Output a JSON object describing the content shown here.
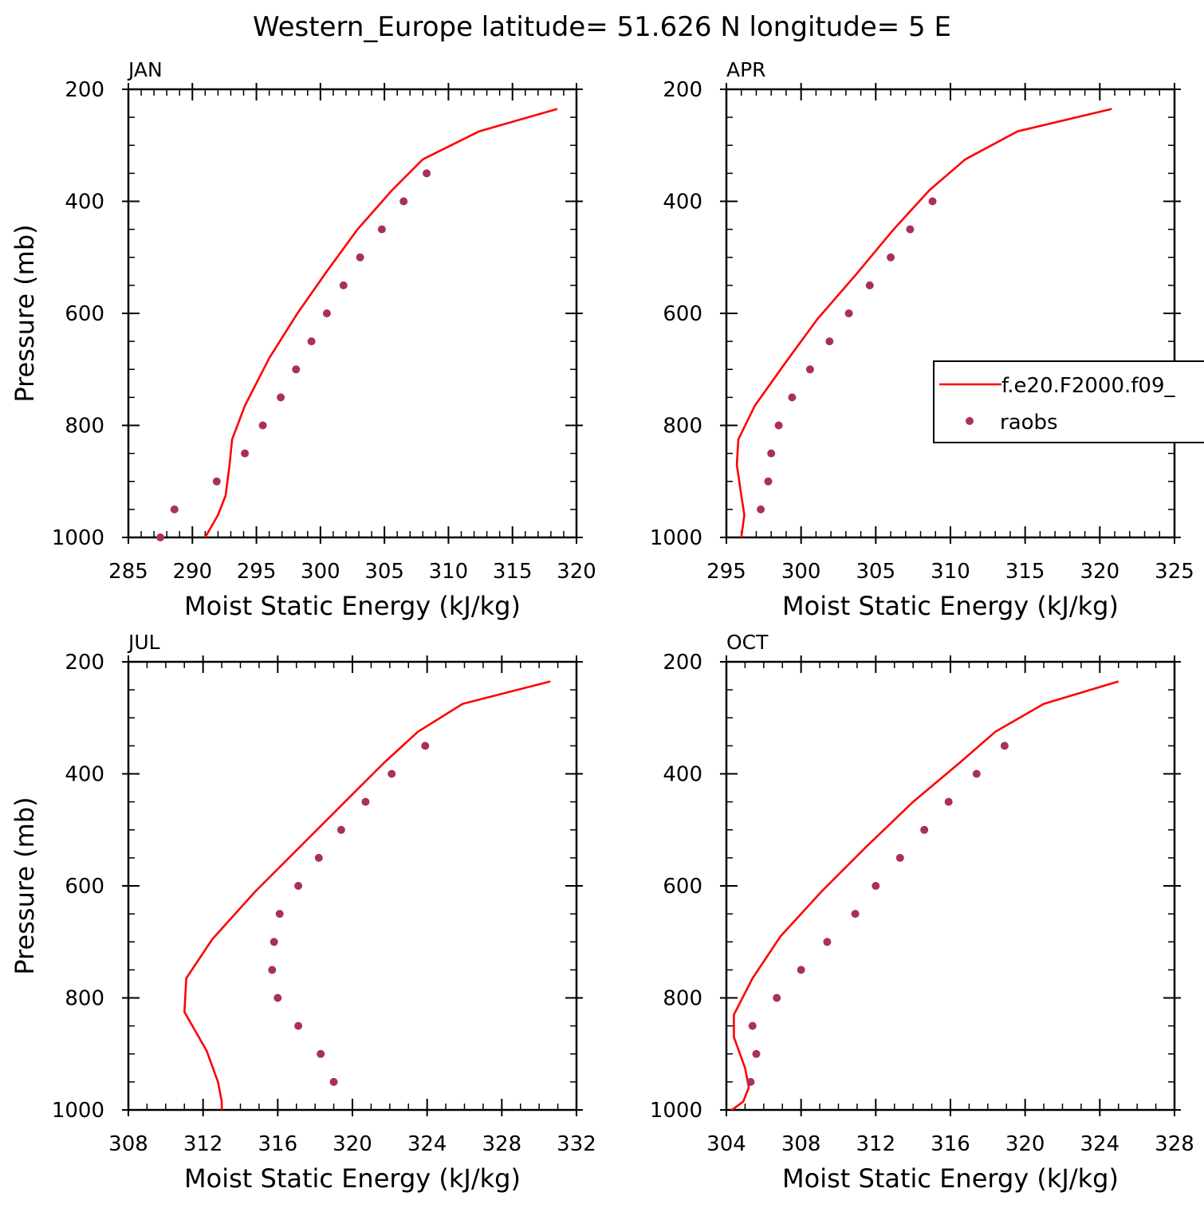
{
  "title": "Western_Europe  latitude= 51.626 N longitude= 5 E",
  "colors": {
    "model": "#ff0000",
    "obs": "#a83060",
    "axes": "#000000",
    "background": "#ffffff"
  },
  "legend": {
    "model_label": "f.e20.F2000.f09_",
    "obs_label": "raobs",
    "placement": "right side of APR panel (clipped at page edge)"
  },
  "chart_data": [
    {
      "type": "line",
      "panel": "JAN",
      "label": "JAN",
      "xlabel": "Moist Static Energy (kJ/kg)",
      "ylabel": "Pressure (mb)",
      "xlim": [
        285,
        320
      ],
      "ylim": [
        1000,
        200
      ],
      "xticks": [
        285,
        290,
        295,
        300,
        305,
        310,
        315,
        320
      ],
      "xtick_labels": [
        "285",
        "290",
        "295",
        "300",
        "305",
        "310",
        "315",
        "320"
      ],
      "yticks": [
        200,
        400,
        600,
        800,
        1000
      ],
      "ytick_labels": [
        "200",
        "400",
        "600",
        "800",
        "1000"
      ],
      "x_minor_step": 1,
      "y_minor_step": 50,
      "show_ylabel": true,
      "grid": false,
      "series": [
        {
          "name": "f.e20.F2000.f09_",
          "kind": "line",
          "x": [
            318.5,
            312.4,
            308.0,
            305.6,
            302.9,
            300.5,
            298.2,
            296.0,
            294.1,
            293.1,
            292.9,
            292.6,
            292.0,
            291.0
          ],
          "y": [
            235,
            275,
            325,
            380,
            450,
            525,
            600,
            680,
            765,
            825,
            870,
            925,
            960,
            1000
          ]
        },
        {
          "name": "raobs",
          "kind": "points",
          "x": [
            308.3,
            306.5,
            304.8,
            303.1,
            301.8,
            300.5,
            299.3,
            298.1,
            296.9,
            295.5,
            294.1,
            291.9,
            288.6,
            287.5
          ],
          "y": [
            350,
            400,
            450,
            500,
            550,
            600,
            650,
            700,
            750,
            800,
            850,
            900,
            950,
            1000
          ]
        }
      ]
    },
    {
      "type": "line",
      "panel": "APR",
      "label": "APR",
      "xlabel": "Moist Static Energy (kJ/kg)",
      "ylabel": "",
      "xlim": [
        295,
        325
      ],
      "ylim": [
        1000,
        200
      ],
      "xticks": [
        295,
        300,
        305,
        310,
        315,
        320,
        325
      ],
      "xtick_labels": [
        "295",
        "300",
        "305",
        "310",
        "315",
        "320",
        "325"
      ],
      "yticks": [
        200,
        400,
        600,
        800,
        1000
      ],
      "ytick_labels": [
        "200",
        "400",
        "600",
        "800",
        "1000"
      ],
      "x_minor_step": 1,
      "y_minor_step": 50,
      "show_ylabel": false,
      "grid": false,
      "series": [
        {
          "name": "f.e20.F2000.f09_",
          "kind": "line",
          "x": [
            320.8,
            314.5,
            311.0,
            308.6,
            306.2,
            303.7,
            301.1,
            298.9,
            296.9,
            295.8,
            295.7,
            296.0,
            296.2,
            296.0
          ],
          "y": [
            235,
            275,
            325,
            380,
            450,
            530,
            610,
            690,
            765,
            825,
            870,
            925,
            960,
            1000
          ]
        },
        {
          "name": "raobs",
          "kind": "points",
          "x": [
            308.8,
            307.3,
            306.0,
            304.6,
            303.2,
            301.9,
            300.6,
            299.4,
            298.5,
            298.0,
            297.8,
            297.3
          ],
          "y": [
            400,
            450,
            500,
            550,
            600,
            650,
            700,
            750,
            800,
            850,
            900,
            950
          ]
        }
      ]
    },
    {
      "type": "line",
      "panel": "JUL",
      "label": "JUL",
      "xlabel": "Moist Static Energy (kJ/kg)",
      "ylabel": "Pressure (mb)",
      "xlim": [
        308,
        332
      ],
      "ylim": [
        1000,
        200
      ],
      "xticks": [
        308,
        312,
        316,
        320,
        324,
        328,
        332
      ],
      "xtick_labels": [
        "308",
        "312",
        "316",
        "320",
        "324",
        "328",
        "332"
      ],
      "yticks": [
        200,
        400,
        600,
        800,
        1000
      ],
      "ytick_labels": [
        "200",
        "400",
        "600",
        "800",
        "1000"
      ],
      "x_minor_step": 1,
      "y_minor_step": 50,
      "show_ylabel": true,
      "grid": false,
      "series": [
        {
          "name": "f.e20.F2000.f09_",
          "kind": "line",
          "x": [
            330.6,
            325.9,
            323.5,
            321.7,
            319.6,
            317.2,
            314.8,
            312.5,
            311.1,
            311.0,
            312.2,
            312.8,
            313.0,
            313.0
          ],
          "y": [
            235,
            275,
            325,
            380,
            450,
            530,
            610,
            695,
            765,
            825,
            895,
            950,
            985,
            1000
          ]
        },
        {
          "name": "raobs",
          "kind": "points",
          "x": [
            323.9,
            322.1,
            320.7,
            319.4,
            318.2,
            317.1,
            316.1,
            315.8,
            315.7,
            316.0,
            317.1,
            318.3,
            319.0
          ],
          "y": [
            350,
            400,
            450,
            500,
            550,
            600,
            650,
            700,
            750,
            800,
            850,
            900,
            950
          ]
        }
      ]
    },
    {
      "type": "line",
      "panel": "OCT",
      "label": "OCT",
      "xlabel": "Moist Static Energy (kJ/kg)",
      "ylabel": "",
      "xlim": [
        304,
        328
      ],
      "ylim": [
        1000,
        200
      ],
      "xticks": [
        304,
        308,
        312,
        316,
        320,
        324,
        328
      ],
      "xtick_labels": [
        "304",
        "308",
        "312",
        "316",
        "320",
        "324",
        "328"
      ],
      "yticks": [
        200,
        400,
        600,
        800,
        1000
      ],
      "ytick_labels": [
        "200",
        "400",
        "600",
        "800",
        "1000"
      ],
      "x_minor_step": 1,
      "y_minor_step": 50,
      "show_ylabel": false,
      "grid": false,
      "series": [
        {
          "name": "f.e20.F2000.f09_",
          "kind": "line",
          "x": [
            325.0,
            321.0,
            318.4,
            316.5,
            314.0,
            311.5,
            309.1,
            306.9,
            305.4,
            304.4,
            304.4,
            305.0,
            305.2,
            304.9,
            304.1
          ],
          "y": [
            235,
            275,
            325,
            380,
            450,
            530,
            610,
            690,
            765,
            830,
            870,
            925,
            960,
            985,
            1005
          ]
        },
        {
          "name": "raobs",
          "kind": "points",
          "x": [
            318.9,
            317.4,
            315.9,
            314.6,
            313.3,
            312.0,
            310.9,
            309.4,
            308.0,
            306.7,
            305.4,
            305.6,
            305.3
          ],
          "y": [
            350,
            400,
            450,
            500,
            550,
            600,
            650,
            700,
            750,
            800,
            850,
            900,
            950
          ]
        }
      ]
    }
  ]
}
